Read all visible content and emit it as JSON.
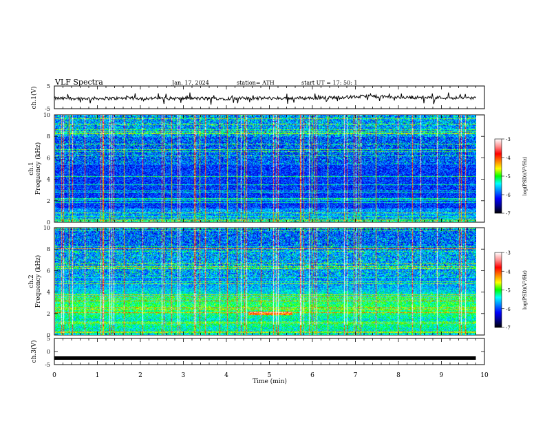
{
  "header": {
    "title": "VLF  Spectra",
    "date": "Jan. 17, 2024",
    "station": "station= ATH",
    "start": "start  UT  =   17: 50: 1"
  },
  "colorbar": {
    "label": "log(PSD)(V²/Hz)",
    "ticks": [
      "-3",
      "-4",
      "-5",
      "-6",
      "-7"
    ],
    "colors": [
      "#000000",
      "#00008c",
      "#0000ff",
      "#0080ff",
      "#00ffff",
      "#00ff00",
      "#ffff00",
      "#ff8000",
      "#ff0000",
      "#ff9090",
      "#ffffff"
    ]
  },
  "chart_data": [
    {
      "type": "line",
      "panel": "ch1-waveform",
      "ylabel": "ch.1(V)",
      "ylim": [
        -5,
        5
      ],
      "yticks": [
        "5",
        "-5"
      ],
      "xlim": [
        0,
        10
      ],
      "series": [
        {
          "x": [
            0,
            1,
            2,
            3,
            4,
            5,
            6,
            7,
            7.3,
            8,
            9,
            9.8
          ],
          "values": [
            -0.5,
            -0.5,
            -0.4,
            -0.5,
            -0.5,
            -0.4,
            -0.3,
            0.2,
            0.5,
            0.0,
            -0.1,
            -0.3
          ]
        }
      ]
    },
    {
      "type": "heatmap",
      "panel": "ch1-spectrogram",
      "ylabel": "ch.1\nFrequency (kHz)",
      "ylim": [
        0,
        10
      ],
      "yticks": [
        "0",
        "2",
        "4",
        "6",
        "8",
        "10"
      ],
      "xlim": [
        0,
        9.8
      ],
      "zlim": [
        -7,
        -3
      ],
      "zlabel": "log(PSD)(V²/Hz)"
    },
    {
      "type": "heatmap",
      "panel": "ch2-spectrogram",
      "ylabel": "ch.2\nFrequency (kHz)",
      "ylim": [
        0,
        10
      ],
      "yticks": [
        "0",
        "2",
        "4",
        "6",
        "8",
        "10"
      ],
      "xlim": [
        0,
        9.8
      ],
      "zlim": [
        -7,
        -3
      ],
      "zlabel": "log(PSD)(V²/Hz)"
    },
    {
      "type": "line",
      "panel": "ch3-waveform",
      "ylabel": "ch.3(V)",
      "ylim": [
        -5,
        5
      ],
      "yticks": [
        "5",
        "0",
        "-5"
      ],
      "xlabel": "Time  (min)",
      "xlim": [
        0,
        10
      ],
      "xticks": [
        "0",
        "1",
        "2",
        "3",
        "4",
        "5",
        "6",
        "7",
        "8",
        "9",
        "10"
      ],
      "series": [
        {
          "x": [
            0,
            9.8
          ],
          "values": [
            -2.5,
            -2.5
          ]
        }
      ]
    }
  ]
}
